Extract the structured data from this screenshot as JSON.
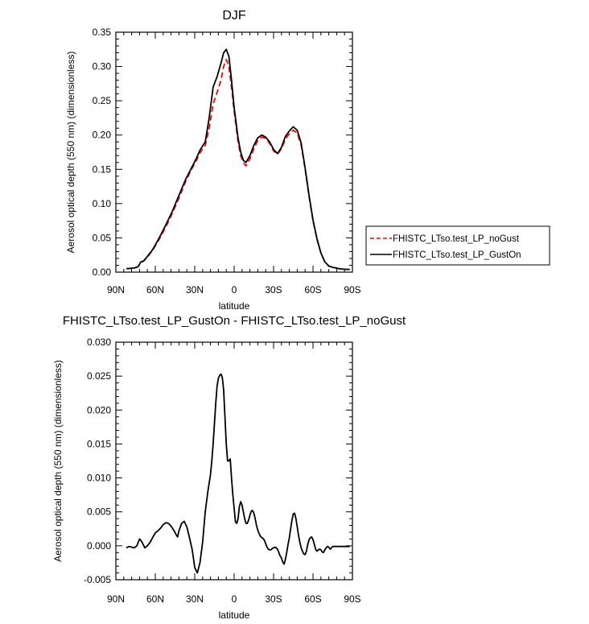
{
  "chart_data": [
    {
      "type": "line",
      "title": "DJF",
      "xlabel": "latitude",
      "ylabel": "Aerosol optical depth (550 nm) (dimensionless)",
      "xlim": [
        -90,
        90
      ],
      "ylim": [
        0,
        0.35
      ],
      "xticks": [
        -90,
        -60,
        -30,
        0,
        30,
        60,
        90
      ],
      "xtick_labels": [
        "90N",
        "60N",
        "30N",
        "0",
        "30S",
        "60S",
        "90S"
      ],
      "yticks": [
        0,
        0.05,
        0.1,
        0.15,
        0.2,
        0.25,
        0.3,
        0.35
      ],
      "ytick_labels": [
        "0.00",
        "0.05",
        "0.10",
        "0.15",
        "0.20",
        "0.25",
        "0.30",
        "0.35"
      ],
      "legend_position": "right",
      "series": [
        {
          "name": "FHISTC_LTso.test_LP_noGust",
          "color": "#ff0000",
          "dash": "dashed",
          "x": [
            -82,
            -76,
            -73,
            -71,
            -69,
            -66,
            -62,
            -57,
            -52,
            -47,
            -42,
            -37,
            -33,
            -29,
            -26,
            -22,
            -19,
            -16,
            -13,
            -10,
            -8,
            -6,
            -4,
            -2,
            0,
            3,
            5,
            7,
            9,
            12,
            15,
            18,
            21,
            24,
            27,
            30,
            33,
            36,
            39,
            42,
            45,
            48,
            51,
            54,
            57,
            60,
            63,
            66,
            69,
            72,
            75,
            80,
            85,
            88
          ],
          "y": [
            0.005,
            0.006,
            0.008,
            0.014,
            0.016,
            0.022,
            0.032,
            0.048,
            0.066,
            0.086,
            0.108,
            0.132,
            0.148,
            0.162,
            0.174,
            0.185,
            0.21,
            0.245,
            0.262,
            0.28,
            0.3,
            0.31,
            0.3,
            0.27,
            0.235,
            0.19,
            0.17,
            0.16,
            0.155,
            0.165,
            0.18,
            0.192,
            0.197,
            0.195,
            0.188,
            0.177,
            0.172,
            0.18,
            0.194,
            0.202,
            0.207,
            0.203,
            0.185,
            0.15,
            0.11,
            0.075,
            0.048,
            0.028,
            0.015,
            0.009,
            0.007,
            0.005,
            0.004,
            0.004
          ]
        },
        {
          "name": "FHISTC_LTso.test_LP_GustOn",
          "color": "#000000",
          "dash": "solid",
          "x": [
            -82,
            -76,
            -73,
            -71,
            -69,
            -66,
            -62,
            -57,
            -52,
            -47,
            -42,
            -37,
            -33,
            -29,
            -26,
            -22,
            -19,
            -16,
            -13,
            -10,
            -8,
            -6,
            -4,
            -2,
            0,
            3,
            5,
            7,
            9,
            12,
            15,
            18,
            21,
            24,
            27,
            30,
            33,
            36,
            39,
            42,
            45,
            48,
            51,
            54,
            57,
            60,
            63,
            66,
            69,
            72,
            75,
            80,
            85,
            88
          ],
          "y": [
            0.005,
            0.006,
            0.008,
            0.015,
            0.016,
            0.023,
            0.033,
            0.05,
            0.069,
            0.089,
            0.112,
            0.135,
            0.15,
            0.165,
            0.178,
            0.19,
            0.225,
            0.27,
            0.285,
            0.305,
            0.32,
            0.325,
            0.315,
            0.28,
            0.24,
            0.195,
            0.175,
            0.163,
            0.16,
            0.17,
            0.185,
            0.196,
            0.2,
            0.197,
            0.19,
            0.179,
            0.173,
            0.182,
            0.198,
            0.206,
            0.212,
            0.207,
            0.188,
            0.152,
            0.112,
            0.076,
            0.049,
            0.028,
            0.015,
            0.009,
            0.007,
            0.005,
            0.004,
            0.004
          ]
        }
      ]
    },
    {
      "type": "line",
      "title": "FHISTC_LTso.test_LP_GustOn - FHISTC_LTso.test_LP_noGust",
      "xlabel": "latitude",
      "ylabel": "Aerosol optical depth (550 nm) (dimensionless)",
      "xlim": [
        -90,
        90
      ],
      "ylim": [
        -0.005,
        0.03
      ],
      "xticks": [
        -90,
        -60,
        -30,
        0,
        30,
        60,
        90
      ],
      "xtick_labels": [
        "90N",
        "60N",
        "30N",
        "0",
        "30S",
        "60S",
        "90S"
      ],
      "yticks": [
        -0.005,
        0,
        0.005,
        0.01,
        0.015,
        0.02,
        0.025,
        0.03
      ],
      "ytick_labels": [
        "-0.005",
        "0.000",
        "0.005",
        "0.010",
        "0.015",
        "0.020",
        "0.025",
        "0.030"
      ],
      "series": [
        {
          "color": "#000000",
          "dash": "solid",
          "x": [
            -82,
            -80,
            -78,
            -76,
            -74,
            -72,
            -71,
            -70,
            -68,
            -66,
            -64,
            -62,
            -60,
            -58,
            -56,
            -54,
            -52,
            -50,
            -48,
            -46,
            -44,
            -43,
            -42,
            -40,
            -38,
            -36,
            -34,
            -32,
            -31,
            -30,
            -28,
            -26,
            -24,
            -22,
            -20,
            -18,
            -17,
            -16,
            -15,
            -14,
            -13,
            -12,
            -11,
            -10,
            -9,
            -8,
            -7,
            -6,
            -5,
            -4,
            -3,
            -2,
            -1,
            0,
            1,
            2,
            3,
            4,
            5,
            6,
            7,
            8,
            9,
            10,
            11,
            12,
            13,
            14,
            15,
            16,
            17,
            18,
            19,
            20,
            21,
            22,
            23,
            24,
            25,
            26,
            27,
            28,
            29,
            30,
            31,
            32,
            33,
            34,
            35,
            36,
            37,
            38,
            39,
            40,
            41,
            42,
            43,
            44,
            45,
            46,
            47,
            48,
            49,
            50,
            51,
            52,
            53,
            54,
            55,
            56,
            57,
            58,
            59,
            60,
            61,
            62,
            63,
            64,
            65,
            66,
            67,
            68,
            69,
            70,
            71,
            72,
            73,
            74,
            75,
            76,
            78,
            80,
            82,
            85,
            88
          ],
          "y": [
            -0.0003,
            -0.0001,
            -0.0002,
            -0.0003,
            0.0,
            0.001,
            0.0008,
            0.0005,
            -0.0003,
            0.0,
            0.0005,
            0.0012,
            0.0019,
            0.0022,
            0.0026,
            0.0031,
            0.0034,
            0.0033,
            0.0029,
            0.0023,
            0.0016,
            0.0013,
            0.0022,
            0.0033,
            0.0036,
            0.0028,
            0.0012,
            -0.0005,
            -0.0018,
            -0.0032,
            -0.004,
            -0.0025,
            0.0005,
            0.005,
            0.008,
            0.0105,
            0.0125,
            0.015,
            0.018,
            0.021,
            0.0235,
            0.0247,
            0.0251,
            0.0253,
            0.0248,
            0.023,
            0.019,
            0.015,
            0.0125,
            0.0125,
            0.0128,
            0.01,
            0.0075,
            0.0055,
            0.0035,
            0.0033,
            0.004,
            0.0058,
            0.0065,
            0.006,
            0.005,
            0.004,
            0.0033,
            0.0033,
            0.0038,
            0.0045,
            0.0051,
            0.0052,
            0.0048,
            0.004,
            0.003,
            0.0023,
            0.0018,
            0.0014,
            0.0012,
            0.0011,
            0.0008,
            0.0003,
            -0.0002,
            -0.0005,
            -0.0006,
            -0.0006,
            -0.0004,
            -0.0003,
            -0.0002,
            -0.0003,
            -0.0005,
            -0.001,
            -0.0015,
            -0.0018,
            -0.0024,
            -0.0027,
            -0.002,
            -0.001,
            0.0002,
            0.0012,
            0.0025,
            0.0038,
            0.0047,
            0.0048,
            0.004,
            0.0028,
            0.0015,
            0.0005,
            -0.0003,
            -0.0008,
            -0.0012,
            -0.0013,
            -0.0008,
            0.0002,
            0.0009,
            0.0012,
            0.0013,
            0.0009,
            0.0002,
            -0.0005,
            -0.0008,
            -0.0006,
            -0.0005,
            -0.0006,
            -0.0009,
            -0.001,
            -0.0006,
            -0.0003,
            -0.0001,
            -0.0002,
            -0.0005,
            -0.0003,
            -0.0001,
            -0.0001,
            -0.0001,
            -0.0001,
            -0.0001,
            -0.0001,
            -0.0001
          ]
        }
      ]
    }
  ]
}
